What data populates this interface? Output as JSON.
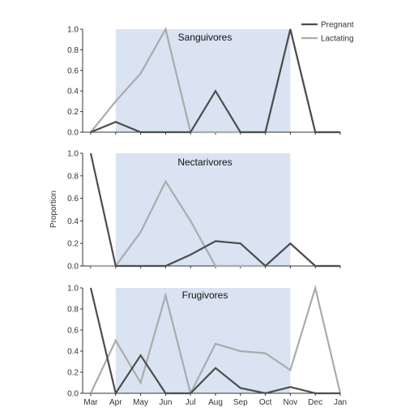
{
  "chart_data": {
    "type": "line",
    "y_axis_label": "Proportion",
    "x_tick_labels": [
      "Mar",
      "Apr",
      "May",
      "Jun",
      "Jul",
      "Aug",
      "Sep",
      "Oct",
      "Nov",
      "Dec",
      "Jan"
    ],
    "highlight_range": [
      "Apr",
      "Nov"
    ],
    "highlight_color": "#d9e3f1",
    "legend": {
      "position": "top-right",
      "entries": [
        "Pregnant",
        "Lactating"
      ]
    },
    "series_colors": {
      "Pregnant": "#4d4d4d",
      "Lactating": "#ababab"
    },
    "y_ticks": [
      "0.0",
      "0.2",
      "0.4",
      "0.6",
      "0.8",
      "1.0"
    ],
    "ylim": [
      0,
      1
    ],
    "panels": [
      {
        "title": "Sanguivores",
        "series": [
          {
            "name": "Pregnant",
            "values": [
              0.0,
              0.1,
              0.0,
              0.0,
              0.0,
              0.4,
              0.0,
              0.0,
              1.0,
              0.0,
              0.0
            ]
          },
          {
            "name": "Lactating",
            "values": [
              0.0,
              0.3,
              0.57,
              1.0,
              0.0,
              0.0,
              0.0,
              0.0,
              1.0,
              0.0,
              0.0
            ]
          }
        ]
      },
      {
        "title": "Nectarivores",
        "series": [
          {
            "name": "Pregnant",
            "values": [
              1.0,
              0.0,
              0.0,
              0.0,
              0.1,
              0.22,
              0.2,
              0.0,
              0.2,
              0.0,
              0.0
            ]
          },
          {
            "name": "Lactating",
            "values": [
              0.0,
              0.0,
              0.3,
              0.75,
              0.4,
              0.0,
              0.0,
              0.0,
              0.2,
              0.0,
              0.0
            ]
          }
        ]
      },
      {
        "title": "Frugivores",
        "series": [
          {
            "name": "Pregnant",
            "values": [
              1.0,
              0.0,
              0.36,
              0.0,
              0.0,
              0.24,
              0.05,
              0.0,
              0.06,
              0.0,
              0.0
            ]
          },
          {
            "name": "Lactating",
            "values": [
              0.0,
              0.5,
              0.1,
              0.93,
              0.0,
              0.47,
              0.4,
              0.38,
              0.22,
              1.0,
              0.0
            ]
          }
        ]
      }
    ]
  }
}
